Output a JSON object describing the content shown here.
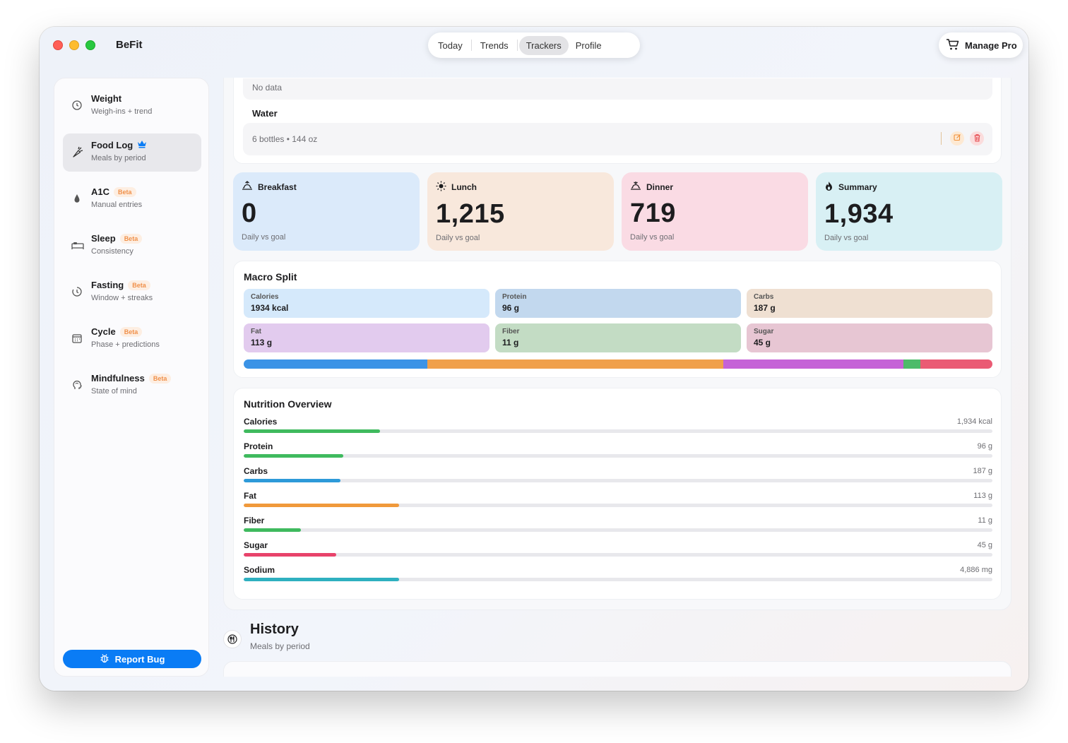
{
  "app": {
    "title": "BeFit"
  },
  "tabs": [
    {
      "label": "Today",
      "active": false
    },
    {
      "label": "Trends",
      "active": false
    },
    {
      "label": "Trackers",
      "active": true
    },
    {
      "label": "Profile",
      "active": false
    }
  ],
  "manage_pro": {
    "label": "Manage Pro",
    "icon": "cart-icon"
  },
  "sidebar": {
    "items": [
      {
        "title": "Weight",
        "subtitle": "Weigh-ins + trend",
        "icon": "scale-icon",
        "beta": ""
      },
      {
        "title": "Food Log",
        "subtitle": "Meals by period",
        "icon": "carrot-icon",
        "beta": "",
        "crown": true,
        "active": true
      },
      {
        "title": "A1C",
        "subtitle": "Manual entries",
        "icon": "drop-icon",
        "beta": "Beta"
      },
      {
        "title": "Sleep",
        "subtitle": "Consistency",
        "icon": "bed-icon",
        "beta": "Beta"
      },
      {
        "title": "Fasting",
        "subtitle": "Window + streaks",
        "icon": "timer-icon",
        "beta": "Beta"
      },
      {
        "title": "Cycle",
        "subtitle": "Phase + predictions",
        "icon": "calendar-icon",
        "beta": "Beta"
      },
      {
        "title": "Mindfulness",
        "subtitle": "State of mind",
        "icon": "head-icon",
        "beta": "Beta"
      }
    ],
    "report_bug": "Report Bug"
  },
  "tracker": {
    "no_data": "No data",
    "water_label": "Water",
    "water_value": "6 bottles • 144 oz"
  },
  "meals": [
    {
      "label": "Breakfast",
      "value": "0",
      "sub": "Daily vs goal",
      "icon": "sunrise-icon",
      "bg": "#dbeafa"
    },
    {
      "label": "Lunch",
      "value": "1,215",
      "sub": "Daily vs goal",
      "icon": "sun-icon",
      "bg": "#f8e8dc"
    },
    {
      "label": "Dinner",
      "value": "719",
      "sub": "Daily vs goal",
      "icon": "sunset-icon",
      "bg": "#fadbe4"
    },
    {
      "label": "Summary",
      "value": "1,934",
      "sub": "Daily vs goal",
      "icon": "flame-icon",
      "bg": "#d8f0f4"
    }
  ],
  "macro_split": {
    "title": "Macro Split",
    "tiles": [
      {
        "name": "Calories",
        "value": "1934 kcal",
        "bg": "#d5e9fb"
      },
      {
        "name": "Protein",
        "value": "96 g",
        "bg": "#c2d8ee"
      },
      {
        "name": "Carbs",
        "value": "187 g",
        "bg": "#efe0d2"
      },
      {
        "name": "Fat",
        "value": "113 g",
        "bg": "#e2cbee"
      },
      {
        "name": "Fiber",
        "value": "11 g",
        "bg": "#c3dcc4"
      },
      {
        "name": "Sugar",
        "value": "45 g",
        "bg": "#e7c6d3"
      }
    ],
    "bar_segments": [
      {
        "name": "protein",
        "fraction": 0.245,
        "color": "#3b93e6"
      },
      {
        "name": "carbs",
        "fraction": 0.396,
        "color": "#f0a04b"
      },
      {
        "name": "fat",
        "fraction": 0.24,
        "color": "#c562d7"
      },
      {
        "name": "fiber",
        "fraction": 0.023,
        "color": "#4dbb6a"
      },
      {
        "name": "sugar",
        "fraction": 0.096,
        "color": "#ea5b74"
      }
    ]
  },
  "nutrition": {
    "title": "Nutrition Overview",
    "rows": [
      {
        "label": "Calories",
        "value": "1,934 kcal",
        "fraction": 0.182,
        "color": "#3fba5e"
      },
      {
        "label": "Protein",
        "value": "96 g",
        "fraction": 0.133,
        "color": "#3fba5e"
      },
      {
        "label": "Carbs",
        "value": "187 g",
        "fraction": 0.129,
        "color": "#2d9ad9"
      },
      {
        "label": "Fat",
        "value": "113 g",
        "fraction": 0.208,
        "color": "#f0993b"
      },
      {
        "label": "Fiber",
        "value": "11 g",
        "fraction": 0.076,
        "color": "#3fba5e"
      },
      {
        "label": "Sugar",
        "value": "45 g",
        "fraction": 0.124,
        "color": "#e8436b"
      },
      {
        "label": "Sodium",
        "value": "4,886 mg",
        "fraction": 0.208,
        "color": "#2fb0c0"
      }
    ]
  },
  "history": {
    "title": "History",
    "subtitle": "Meals by period",
    "icon": "utensils-icon"
  }
}
